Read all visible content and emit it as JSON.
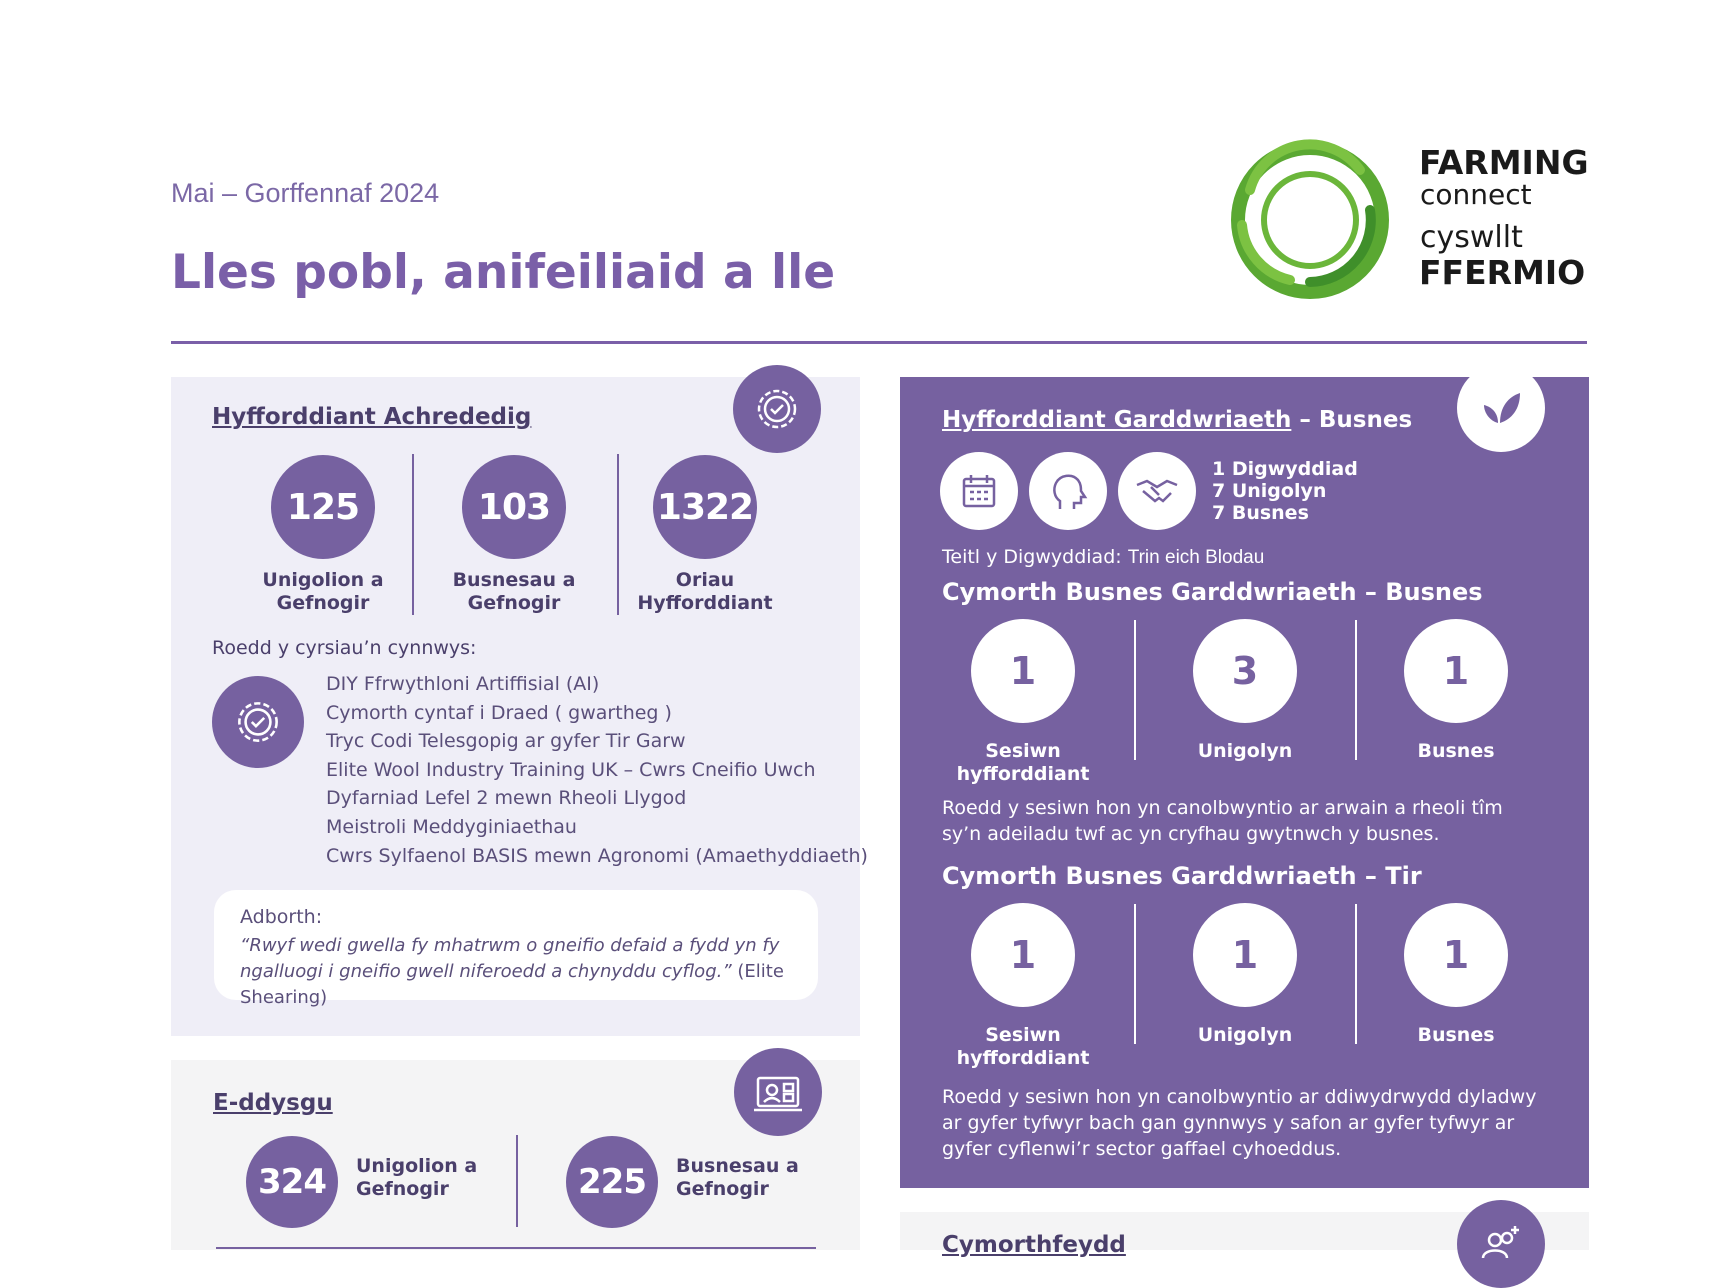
{
  "header": {
    "date": "Mai – Gorffennaf 2024",
    "title": "Lles pobl, anifeiliaid a lle"
  },
  "logo": {
    "line1": "FARMING",
    "line2": "connect",
    "line3": "cyswllt",
    "line4": "FFERMIO"
  },
  "accredited": {
    "title": "Hyfforddiant Achrededig",
    "stats": [
      {
        "value": 125,
        "label": "Unigolion a Gefnogir"
      },
      {
        "value": 103,
        "label": "Busnesau a Gefnogir"
      },
      {
        "value": 1322,
        "label": "Oriau Hyfforddiant"
      }
    ],
    "courses_intro": "Roedd y cyrsiau’n cynnwys:",
    "courses": [
      "DIY Ffrwythloni Artiffisial (AI)",
      "Cymorth cyntaf i Draed ( gwartheg )",
      "Tryc Codi Telesgopig ar gyfer Tir Garw",
      "Elite Wool Industry Training UK – Cwrs Cneifio Uwch",
      "Dyfarniad Lefel 2 mewn Rheoli Llygod",
      "Meistroli Meddyginiaethau",
      "Cwrs Sylfaenol BASIS mewn Agronomi (Amaethyddiaeth)"
    ],
    "feedback": {
      "label": "Adborth:",
      "quote": "“Rwyf wedi gwella fy mhatrwm o gneifio defaid a fydd yn fy ngalluogi i gneifio gwell niferoedd a chynyddu cyflog.”",
      "source": "(Elite Shearing)"
    }
  },
  "elearning": {
    "title": "E-ddysgu",
    "stats": [
      {
        "value": 324,
        "label": "Unigolion a Gefnogir"
      },
      {
        "value": 225,
        "label": "Busnesau a Gefnogir"
      }
    ]
  },
  "horticulture": {
    "title": "Hyfforddiant Garddwriaeth",
    "title_suffix": "– Busnes",
    "counts": [
      "1 Digwyddiad",
      "7 Unigolyn",
      "7 Busnes"
    ],
    "event_label": "Teitl y Digwyddiad:",
    "event_title": "Trin eich Blodau",
    "sections": [
      {
        "title": "Cymorth Busnes Garddwriaeth – Busnes",
        "stats": [
          {
            "value": 1,
            "label": "Sesiwn hyfforddiant"
          },
          {
            "value": 3,
            "label": "Unigolyn"
          },
          {
            "value": 1,
            "label": "Busnes"
          }
        ],
        "text": "Roedd y sesiwn hon yn canolbwyntio ar arwain a rheoli tîm sy’n adeiladu twf ac yn cryfhau gwytnwch y busnes."
      },
      {
        "title": "Cymorth Busnes Garddwriaeth – Tir",
        "stats": [
          {
            "value": 1,
            "label": "Sesiwn hyfforddiant"
          },
          {
            "value": 1,
            "label": "Unigolyn"
          },
          {
            "value": 1,
            "label": "Busnes"
          }
        ],
        "text": "Roedd y sesiwn hon yn canolbwyntio ar ddiwydrwydd dyladwy ar gyfer tyfwyr bach gan gynnwys y safon ar gyfer tyfwyr ar gyfer cyflenwi’r sector gaffael cyhoeddus."
      }
    ]
  },
  "mentoring": {
    "title": "Cymorthfeydd"
  }
}
